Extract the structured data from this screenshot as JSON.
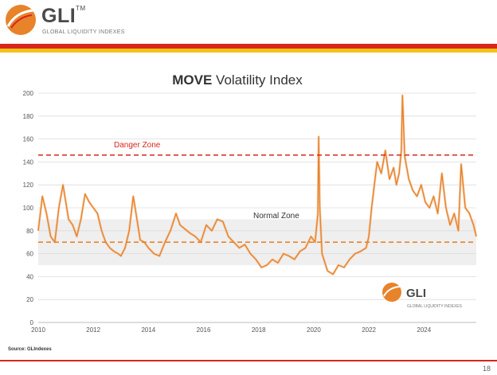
{
  "header": {
    "brand": "GLI",
    "brand_tm": "TM",
    "subtitle": "GLOBAL LIQUIDITY INDEXES"
  },
  "colors": {
    "series": "#e8832a",
    "series_light": "#f2b98a",
    "danger_line": "#d8261c",
    "normal_band": "#efefef",
    "brand_red": "#d8261c",
    "brand_yellow": "#f5c21b"
  },
  "chart_data": {
    "type": "line",
    "title_bold": "MOVE",
    "title_rest": " Volatility Index",
    "xlabel": "",
    "ylabel": "",
    "xlim": [
      2010,
      2025.9
    ],
    "ylim": [
      0,
      200
    ],
    "x_ticks": [
      2010,
      2012,
      2014,
      2016,
      2018,
      2020,
      2022,
      2024
    ],
    "y_ticks": [
      0,
      20,
      40,
      60,
      80,
      100,
      120,
      140,
      160,
      180,
      200
    ],
    "grid": true,
    "normal_band": [
      50,
      90
    ],
    "danger_threshold": 146,
    "normal_threshold": 70,
    "annotations": {
      "danger": "Danger Zone",
      "normal": "Normal Zone"
    },
    "series": [
      {
        "name": "MOVE",
        "x": [
          2010.0,
          2010.15,
          2010.3,
          2010.45,
          2010.6,
          2010.75,
          2010.9,
          2011.0,
          2011.1,
          2011.25,
          2011.4,
          2011.55,
          2011.7,
          2011.85,
          2012.0,
          2012.15,
          2012.3,
          2012.45,
          2012.6,
          2012.75,
          2012.9,
          2013.0,
          2013.15,
          2013.3,
          2013.45,
          2013.55,
          2013.7,
          2013.85,
          2014.0,
          2014.2,
          2014.4,
          2014.6,
          2014.8,
          2015.0,
          2015.15,
          2015.3,
          2015.5,
          2015.7,
          2015.9,
          2016.1,
          2016.3,
          2016.5,
          2016.7,
          2016.9,
          2017.1,
          2017.3,
          2017.5,
          2017.7,
          2017.9,
          2018.1,
          2018.3,
          2018.5,
          2018.7,
          2018.9,
          2019.1,
          2019.3,
          2019.5,
          2019.7,
          2019.9,
          2020.05,
          2020.15,
          2020.18,
          2020.22,
          2020.3,
          2020.5,
          2020.7,
          2020.9,
          2021.1,
          2021.3,
          2021.5,
          2021.7,
          2021.9,
          2022.0,
          2022.1,
          2022.2,
          2022.3,
          2022.45,
          2022.6,
          2022.75,
          2022.9,
          2023.0,
          2023.1,
          2023.18,
          2023.22,
          2023.3,
          2023.45,
          2023.6,
          2023.75,
          2023.9,
          2024.05,
          2024.2,
          2024.35,
          2024.5,
          2024.65,
          2024.8,
          2024.95,
          2025.1,
          2025.25,
          2025.35,
          2025.5,
          2025.65,
          2025.8,
          2025.9
        ],
        "values": [
          80,
          110,
          95,
          75,
          70,
          100,
          120,
          105,
          90,
          85,
          75,
          90,
          112,
          105,
          100,
          95,
          80,
          70,
          65,
          62,
          60,
          58,
          65,
          80,
          110,
          95,
          72,
          70,
          65,
          60,
          58,
          70,
          80,
          95,
          85,
          82,
          78,
          75,
          70,
          85,
          80,
          90,
          88,
          75,
          70,
          65,
          68,
          60,
          55,
          48,
          50,
          55,
          52,
          60,
          58,
          55,
          62,
          65,
          75,
          70,
          95,
          162,
          100,
          60,
          45,
          42,
          50,
          48,
          55,
          60,
          62,
          65,
          75,
          100,
          120,
          140,
          130,
          150,
          125,
          135,
          120,
          130,
          150,
          198,
          145,
          125,
          115,
          110,
          120,
          105,
          100,
          110,
          95,
          130,
          100,
          85,
          95,
          80,
          138,
          100,
          95,
          85,
          75
        ]
      }
    ],
    "source": "Source: GLIndexes",
    "watermark_brand": "GLI",
    "watermark_sub": "GLOBAL LIQUIDITY INDEXES"
  },
  "page": {
    "number": "18"
  }
}
